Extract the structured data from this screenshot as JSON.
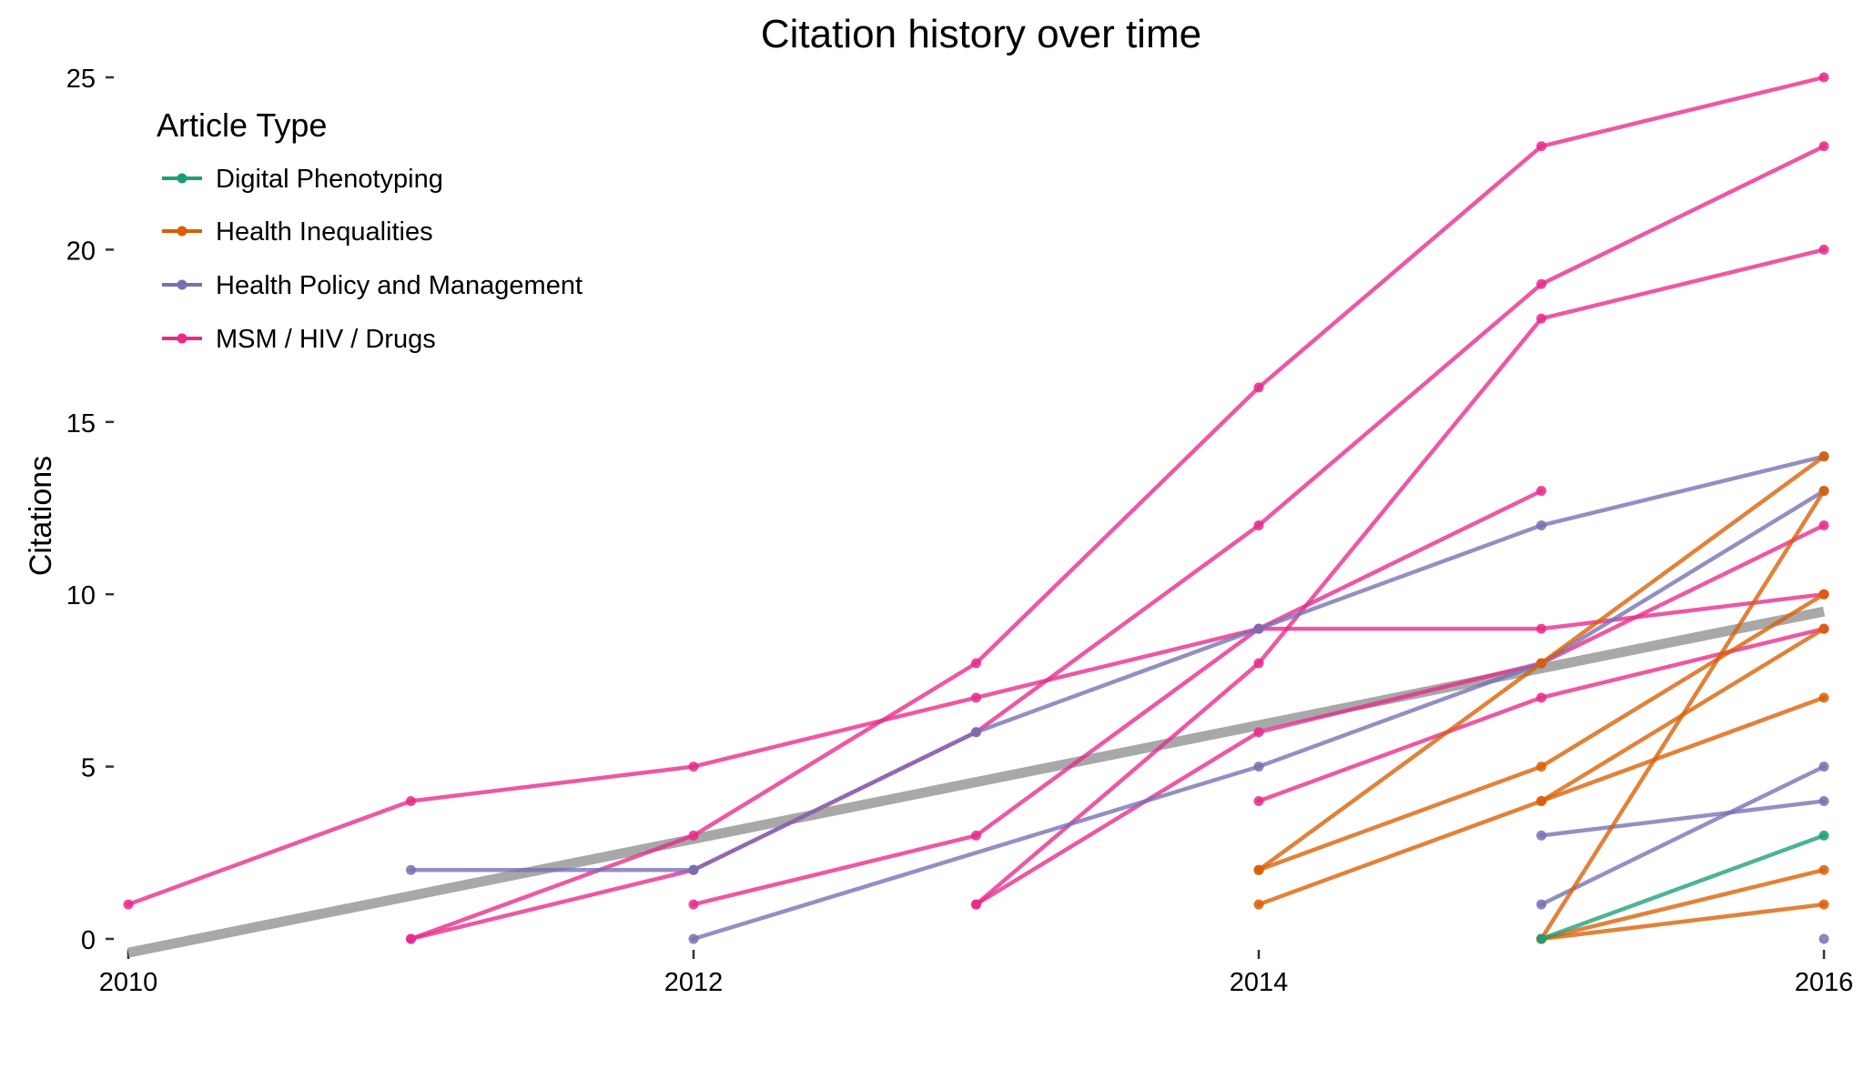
{
  "chart_data": {
    "type": "line",
    "title": "Citation history over time",
    "xlabel": "",
    "ylabel": "Citations",
    "xlim": [
      2010,
      2016
    ],
    "ylim": [
      0,
      25
    ],
    "x_ticks": [
      "2010",
      "2012",
      "2014",
      "2016"
    ],
    "y_ticks": [
      "0",
      "5",
      "10",
      "15",
      "20",
      "25"
    ],
    "grid": false,
    "legend": {
      "title": "Article Type",
      "placement": "top-left",
      "entries": [
        {
          "name": "Digital Phenotyping",
          "color": "#1b9e77"
        },
        {
          "name": "Health Inequalities",
          "color": "#d95f02"
        },
        {
          "name": "Health Policy and Management",
          "color": "#7570b3"
        },
        {
          "name": "MSM / HIV / Drugs",
          "color": "#e7298a"
        }
      ]
    },
    "trend_line": {
      "color": "#a8a8a8",
      "points": [
        [
          2010,
          -0.4
        ],
        [
          2016,
          9.5
        ]
      ]
    },
    "series": [
      {
        "group": "MSM / HIV / Drugs",
        "points": [
          [
            2010,
            1
          ],
          [
            2011,
            4
          ],
          [
            2012,
            5
          ],
          [
            2013,
            7
          ],
          [
            2014,
            9
          ],
          [
            2015,
            9
          ],
          [
            2016,
            10
          ]
        ]
      },
      {
        "group": "MSM / HIV / Drugs",
        "points": [
          [
            2011,
            0
          ],
          [
            2012,
            3
          ],
          [
            2013,
            8
          ],
          [
            2014,
            16
          ],
          [
            2015,
            23
          ],
          [
            2016,
            25
          ]
        ]
      },
      {
        "group": "MSM / HIV / Drugs",
        "points": [
          [
            2011,
            0
          ],
          [
            2012,
            2
          ],
          [
            2013,
            6
          ],
          [
            2014,
            12
          ],
          [
            2015,
            19
          ],
          [
            2016,
            23
          ]
        ]
      },
      {
        "group": "MSM / HIV / Drugs",
        "points": [
          [
            2013,
            1
          ],
          [
            2014,
            8
          ],
          [
            2015,
            18
          ],
          [
            2016,
            20
          ]
        ]
      },
      {
        "group": "MSM / HIV / Drugs",
        "points": [
          [
            2012,
            1
          ],
          [
            2013,
            3
          ],
          [
            2014,
            9
          ],
          [
            2015,
            13
          ]
        ]
      },
      {
        "group": "MSM / HIV / Drugs",
        "points": [
          [
            2013,
            1
          ],
          [
            2014,
            6
          ],
          [
            2015,
            8
          ],
          [
            2016,
            12
          ]
        ]
      },
      {
        "group": "MSM / HIV / Drugs",
        "points": [
          [
            2014,
            4
          ],
          [
            2015,
            7
          ],
          [
            2016,
            9
          ]
        ]
      },
      {
        "group": "Health Policy and Management",
        "points": [
          [
            2011,
            2
          ],
          [
            2012,
            2
          ]
        ]
      },
      {
        "group": "Health Policy and Management",
        "points": [
          [
            2012,
            2
          ],
          [
            2013,
            6
          ],
          [
            2014,
            9
          ],
          [
            2015,
            12
          ],
          [
            2016,
            14
          ]
        ]
      },
      {
        "group": "Health Policy and Management",
        "points": [
          [
            2012,
            0
          ],
          [
            2014,
            5
          ],
          [
            2015,
            8
          ],
          [
            2016,
            13
          ]
        ]
      },
      {
        "group": "Health Policy and Management",
        "points": [
          [
            2015,
            3
          ],
          [
            2016,
            4
          ]
        ]
      },
      {
        "group": "Health Policy and Management",
        "points": [
          [
            2015,
            1
          ],
          [
            2016,
            5
          ]
        ]
      },
      {
        "group": "Health Policy and Management",
        "points": [
          [
            2016,
            0
          ]
        ]
      },
      {
        "group": "Health Inequalities",
        "points": [
          [
            2014,
            2
          ],
          [
            2015,
            8
          ],
          [
            2016,
            14
          ]
        ]
      },
      {
        "group": "Health Inequalities",
        "points": [
          [
            2014,
            2
          ],
          [
            2015,
            5
          ],
          [
            2016,
            10
          ]
        ]
      },
      {
        "group": "Health Inequalities",
        "points": [
          [
            2014,
            1
          ],
          [
            2015,
            4
          ],
          [
            2016,
            7
          ]
        ]
      },
      {
        "group": "Health Inequalities",
        "points": [
          [
            2015,
            4
          ],
          [
            2016,
            9
          ]
        ]
      },
      {
        "group": "Health Inequalities",
        "points": [
          [
            2015,
            0
          ],
          [
            2016,
            13
          ]
        ]
      },
      {
        "group": "Health Inequalities",
        "points": [
          [
            2015,
            0
          ],
          [
            2016,
            2
          ]
        ]
      },
      {
        "group": "Health Inequalities",
        "points": [
          [
            2015,
            0
          ],
          [
            2016,
            1
          ]
        ]
      },
      {
        "group": "Digital Phenotyping",
        "points": [
          [
            2015,
            0
          ],
          [
            2016,
            3
          ]
        ]
      }
    ]
  }
}
